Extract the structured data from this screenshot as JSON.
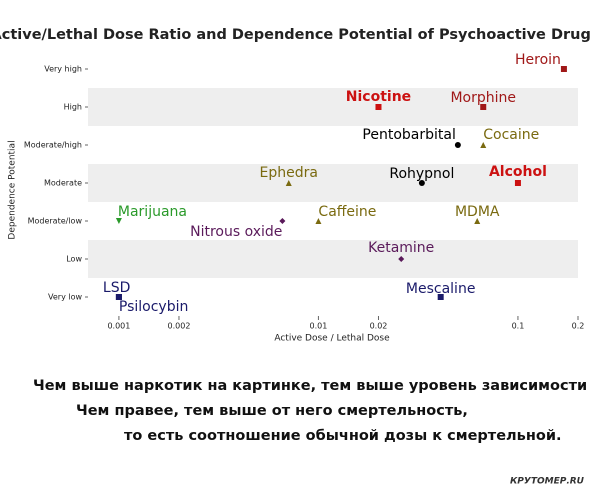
{
  "chart_data": {
    "type": "scatter",
    "title": "Active/Lethal Dose Ratio and Dependence Potential of Psychoactive Drugs",
    "xlabel": "Active Dose / Lethal Dose",
    "ylabel": "Dependence Potential",
    "xscale": "log",
    "xlim": [
      0.0007,
      0.2
    ],
    "xticks": [
      0.001,
      0.002,
      0.01,
      0.02,
      0.1,
      0.2
    ],
    "ylim": [
      0.5,
      7.5
    ],
    "yticks": [
      {
        "value": 1,
        "label": "Very low"
      },
      {
        "value": 2,
        "label": "Low"
      },
      {
        "value": 3,
        "label": "Moderate/low"
      },
      {
        "value": 4,
        "label": "Moderate"
      },
      {
        "value": 5,
        "label": "Moderate/high"
      },
      {
        "value": 6,
        "label": "High"
      },
      {
        "value": 7,
        "label": "Very high"
      }
    ],
    "points": [
      {
        "name": "Heroin",
        "x": 0.17,
        "y": 7,
        "color": "#a01818",
        "marker": "square"
      },
      {
        "name": "Nicotine",
        "x": 0.02,
        "y": 6,
        "color": "#cc1111",
        "marker": "square"
      },
      {
        "name": "Morphine",
        "x": 0.067,
        "y": 6,
        "color": "#a01818",
        "marker": "square"
      },
      {
        "name": "Pentobarbital",
        "x": 0.05,
        "y": 5,
        "color": "#000000",
        "marker": "circle"
      },
      {
        "name": "Cocaine",
        "x": 0.067,
        "y": 5,
        "color": "#7a6a10",
        "marker": "triangle"
      },
      {
        "name": "Ephedra",
        "x": 0.0071,
        "y": 4,
        "color": "#7a6a10",
        "marker": "triangle"
      },
      {
        "name": "Rohypnol",
        "x": 0.033,
        "y": 4,
        "color": "#000000",
        "marker": "circle"
      },
      {
        "name": "Alcohol",
        "x": 0.1,
        "y": 4,
        "color": "#cc1111",
        "marker": "square"
      },
      {
        "name": "Marijuana",
        "x": 0.001,
        "y": 3,
        "color": "#2a9a2a",
        "marker": "triangle-down"
      },
      {
        "name": "Nitrous oxide",
        "x": 0.0066,
        "y": 3,
        "color": "#5a1a5a",
        "marker": "diamond"
      },
      {
        "name": "Caffeine",
        "x": 0.01,
        "y": 3,
        "color": "#7a6a10",
        "marker": "triangle"
      },
      {
        "name": "MDMA",
        "x": 0.0625,
        "y": 3,
        "color": "#7a6a10",
        "marker": "triangle"
      },
      {
        "name": "Ketamine",
        "x": 0.026,
        "y": 2,
        "color": "#5a1a5a",
        "marker": "diamond"
      },
      {
        "name": "LSD",
        "x": 0.001,
        "y": 1,
        "color": "#1a1a6a",
        "marker": "square"
      },
      {
        "name": "Psilocybin",
        "x": 0.001,
        "y": 1,
        "color": "#1a1a6a",
        "marker": "square"
      },
      {
        "name": "Mescaline",
        "x": 0.041,
        "y": 1,
        "color": "#1a1a6a",
        "marker": "square"
      }
    ]
  },
  "caption": [
    "Чем выше наркотик на картинке, тем выше уровень зависимости от него.",
    "Чем правее, тем выше от него смертельность,",
    "то есть соотношение обычной дозы к смертельной."
  ],
  "watermark": "КРУТОМЕР.RU"
}
